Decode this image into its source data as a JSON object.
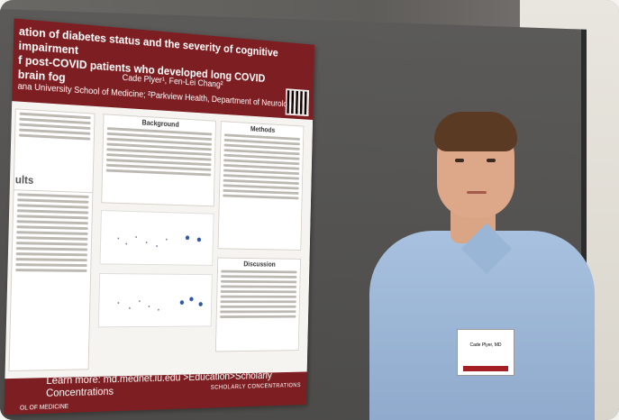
{
  "poster": {
    "title_line1": "ation of diabetes status and the severity of cognitive impairment",
    "title_line2": "f post-COVID patients who developed long COVID brain fog",
    "authors": "Cade Plyer¹, Fen-Lei Chang²",
    "affiliation": "ana University School of Medicine; ²Parkview Health, Department of Neurology",
    "sections": {
      "background": "Background",
      "methods": "Methods",
      "discussion": "Discussion",
      "results": "ults"
    },
    "footer_learn_more": "Learn more: md.mednet.iu.edu >Education>Scholarly Concentrations",
    "footer_scholarly": "SCHOLARLY CONCENTRATIONS",
    "footer_school": "OL OF MEDICINE"
  },
  "badge": {
    "name": "Cade Plyer, MD"
  }
}
